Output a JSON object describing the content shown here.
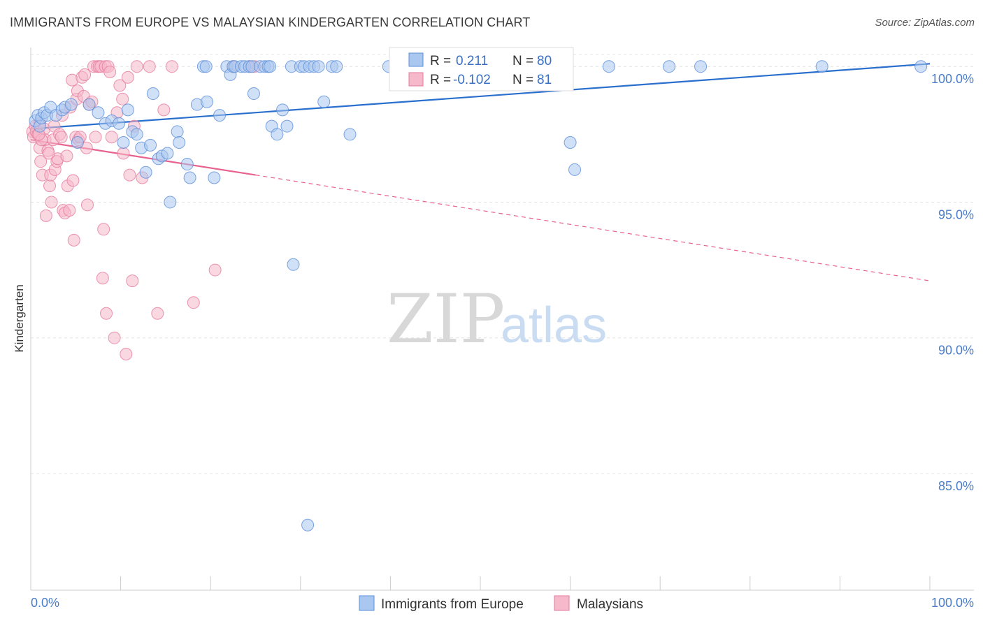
{
  "title": "IMMIGRANTS FROM EUROPE VS MALAYSIAN KINDERGARTEN CORRELATION CHART",
  "source": "Source: ZipAtlas.com",
  "watermark": {
    "zip": "ZIP",
    "atlas": "atlas"
  },
  "colors": {
    "blue_fill": "#a9c7ef",
    "blue_stroke": "#5b8fd9",
    "blue_line": "#2a6fce",
    "pink_fill": "#f6b8cb",
    "pink_stroke": "#e67a9d",
    "pink_line": "#e8628f",
    "tick_text": "#4a7cc9",
    "grid": "#e4e4e4"
  },
  "legend": {
    "r_label": "R =",
    "n_label": "N =",
    "rows": [
      {
        "r": " 0.211",
        "n": "80"
      },
      {
        "r": "-0.102",
        "n": " 81"
      }
    ]
  },
  "chart_data": {
    "type": "scatter",
    "title": "IMMIGRANTS FROM EUROPE VS MALAYSIAN KINDERGARTEN CORRELATION CHART",
    "xlabel": "",
    "ylabel": "Kindergarten",
    "xlim": [
      0,
      100
    ],
    "ylim": [
      80.7,
      100.7
    ],
    "x_tick_labels": [
      "0.0%",
      "100.0%"
    ],
    "y_ticks": [
      {
        "value": 100,
        "label": "100.0%"
      },
      {
        "value": 95,
        "label": "95.0%"
      },
      {
        "value": 90,
        "label": "90.0%"
      },
      {
        "value": 85,
        "label": "85.0%"
      }
    ],
    "grid": true,
    "legend_position": "top-center",
    "series": [
      {
        "name": "Immigrants from Europe",
        "color": "#a9c7ef",
        "trend": {
          "x": [
            0,
            100
          ],
          "y": [
            97.7,
            100.1
          ],
          "dashed_from": null
        },
        "points": [
          [
            0.5,
            98.0
          ],
          [
            0.8,
            98.2
          ],
          [
            1.0,
            97.8
          ],
          [
            1.2,
            98.1
          ],
          [
            1.5,
            98.3
          ],
          [
            1.8,
            98.2
          ],
          [
            2.2,
            98.5
          ],
          [
            2.8,
            98.2
          ],
          [
            3.5,
            98.4
          ],
          [
            3.8,
            98.5
          ],
          [
            4.5,
            98.6
          ],
          [
            5.2,
            97.2
          ],
          [
            6.5,
            98.6
          ],
          [
            7.5,
            98.3
          ],
          [
            8.3,
            97.9
          ],
          [
            9.0,
            98.0
          ],
          [
            9.8,
            97.9
          ],
          [
            10.3,
            97.2
          ],
          [
            10.8,
            98.4
          ],
          [
            11.3,
            97.6
          ],
          [
            11.8,
            97.5
          ],
          [
            12.3,
            97.0
          ],
          [
            12.8,
            96.1
          ],
          [
            13.3,
            97.1
          ],
          [
            13.6,
            99.0
          ],
          [
            14.2,
            96.6
          ],
          [
            14.6,
            96.7
          ],
          [
            15.2,
            96.8
          ],
          [
            15.5,
            95.0
          ],
          [
            16.3,
            97.6
          ],
          [
            16.5,
            97.2
          ],
          [
            17.4,
            96.4
          ],
          [
            17.7,
            95.9
          ],
          [
            18.5,
            98.6
          ],
          [
            19.2,
            100.0
          ],
          [
            19.5,
            100.0
          ],
          [
            19.6,
            98.7
          ],
          [
            20.4,
            95.9
          ],
          [
            21.0,
            98.2
          ],
          [
            21.8,
            100.0
          ],
          [
            22.2,
            99.7
          ],
          [
            22.5,
            100.0
          ],
          [
            22.7,
            100.0
          ],
          [
            23.4,
            100.0
          ],
          [
            23.8,
            100.0
          ],
          [
            24.3,
            100.0
          ],
          [
            24.6,
            100.0
          ],
          [
            24.8,
            99.0
          ],
          [
            25.5,
            100.0
          ],
          [
            26.0,
            100.0
          ],
          [
            26.4,
            100.0
          ],
          [
            26.6,
            100.0
          ],
          [
            26.8,
            97.8
          ],
          [
            27.4,
            97.5
          ],
          [
            28.0,
            98.4
          ],
          [
            28.5,
            97.8
          ],
          [
            29.2,
            92.7
          ],
          [
            29.0,
            100.0
          ],
          [
            30.0,
            100.0
          ],
          [
            30.4,
            100.0
          ],
          [
            31.0,
            100.0
          ],
          [
            31.5,
            100.0
          ],
          [
            32.0,
            100.0
          ],
          [
            32.6,
            98.7
          ],
          [
            33.5,
            100.0
          ],
          [
            34.0,
            100.0
          ],
          [
            35.5,
            97.5
          ],
          [
            39.8,
            100.0
          ],
          [
            47.0,
            100.0
          ],
          [
            52.0,
            100.0
          ],
          [
            55.0,
            100.0
          ],
          [
            56.0,
            100.0
          ],
          [
            59.0,
            100.0
          ],
          [
            60.0,
            97.2
          ],
          [
            60.5,
            96.2
          ],
          [
            64.3,
            100.0
          ],
          [
            71.0,
            100.0
          ],
          [
            74.5,
            100.0
          ],
          [
            88.0,
            100.0
          ],
          [
            99.0,
            100.0
          ],
          [
            30.8,
            83.1
          ]
        ]
      },
      {
        "name": "Malaysians",
        "color": "#f6b8cb",
        "trend": {
          "x": [
            0,
            100
          ],
          "y": [
            97.3,
            92.1
          ],
          "dashed_from": 25
        },
        "points": [
          [
            0.2,
            97.6
          ],
          [
            0.3,
            97.4
          ],
          [
            0.5,
            97.8
          ],
          [
            0.6,
            97.6
          ],
          [
            0.8,
            97.5
          ],
          [
            1.0,
            97.9
          ],
          [
            1.0,
            97.0
          ],
          [
            1.1,
            96.5
          ],
          [
            1.3,
            96.0
          ],
          [
            1.5,
            97.7
          ],
          [
            1.6,
            97.3
          ],
          [
            1.7,
            94.5
          ],
          [
            1.9,
            96.9
          ],
          [
            2.1,
            95.6
          ],
          [
            2.2,
            96.0
          ],
          [
            2.3,
            95.0
          ],
          [
            2.5,
            97.3
          ],
          [
            2.6,
            97.8
          ],
          [
            2.7,
            96.2
          ],
          [
            2.9,
            96.5
          ],
          [
            3.0,
            96.6
          ],
          [
            3.2,
            97.5
          ],
          [
            3.4,
            97.4
          ],
          [
            3.5,
            98.2
          ],
          [
            3.6,
            94.7
          ],
          [
            3.8,
            94.6
          ],
          [
            4.0,
            96.7
          ],
          [
            4.1,
            95.6
          ],
          [
            4.3,
            94.7
          ],
          [
            4.4,
            98.5
          ],
          [
            4.6,
            99.5
          ],
          [
            4.7,
            95.8
          ],
          [
            4.8,
            93.6
          ],
          [
            5.0,
            97.4
          ],
          [
            5.1,
            98.8
          ],
          [
            5.2,
            99.1
          ],
          [
            5.3,
            97.3
          ],
          [
            5.5,
            97.4
          ],
          [
            5.7,
            99.6
          ],
          [
            5.9,
            98.9
          ],
          [
            6.0,
            99.7
          ],
          [
            6.2,
            97.0
          ],
          [
            6.3,
            94.9
          ],
          [
            6.5,
            98.6
          ],
          [
            6.8,
            98.7
          ],
          [
            7.0,
            100.0
          ],
          [
            7.2,
            97.4
          ],
          [
            7.4,
            100.0
          ],
          [
            7.6,
            100.0
          ],
          [
            7.8,
            100.0
          ],
          [
            8.0,
            92.2
          ],
          [
            8.1,
            94.0
          ],
          [
            8.3,
            100.0
          ],
          [
            8.4,
            90.9
          ],
          [
            8.6,
            100.0
          ],
          [
            8.8,
            99.8
          ],
          [
            9.0,
            97.4
          ],
          [
            9.3,
            90.0
          ],
          [
            9.6,
            98.3
          ],
          [
            9.9,
            99.3
          ],
          [
            10.2,
            98.8
          ],
          [
            10.3,
            96.8
          ],
          [
            10.6,
            89.4
          ],
          [
            10.8,
            99.6
          ],
          [
            11.0,
            96.0
          ],
          [
            11.3,
            92.1
          ],
          [
            11.5,
            97.8
          ],
          [
            11.8,
            100.0
          ],
          [
            12.4,
            95.9
          ],
          [
            13.2,
            100.0
          ],
          [
            14.1,
            90.9
          ],
          [
            14.8,
            98.4
          ],
          [
            15.7,
            100.0
          ],
          [
            18.1,
            91.3
          ],
          [
            20.5,
            92.5
          ],
          [
            22.5,
            100.0
          ],
          [
            24.3,
            100.0
          ],
          [
            24.9,
            100.0
          ],
          [
            1.2,
            97.3
          ],
          [
            2.0,
            96.8
          ],
          [
            0.9,
            97.5
          ]
        ]
      }
    ]
  }
}
